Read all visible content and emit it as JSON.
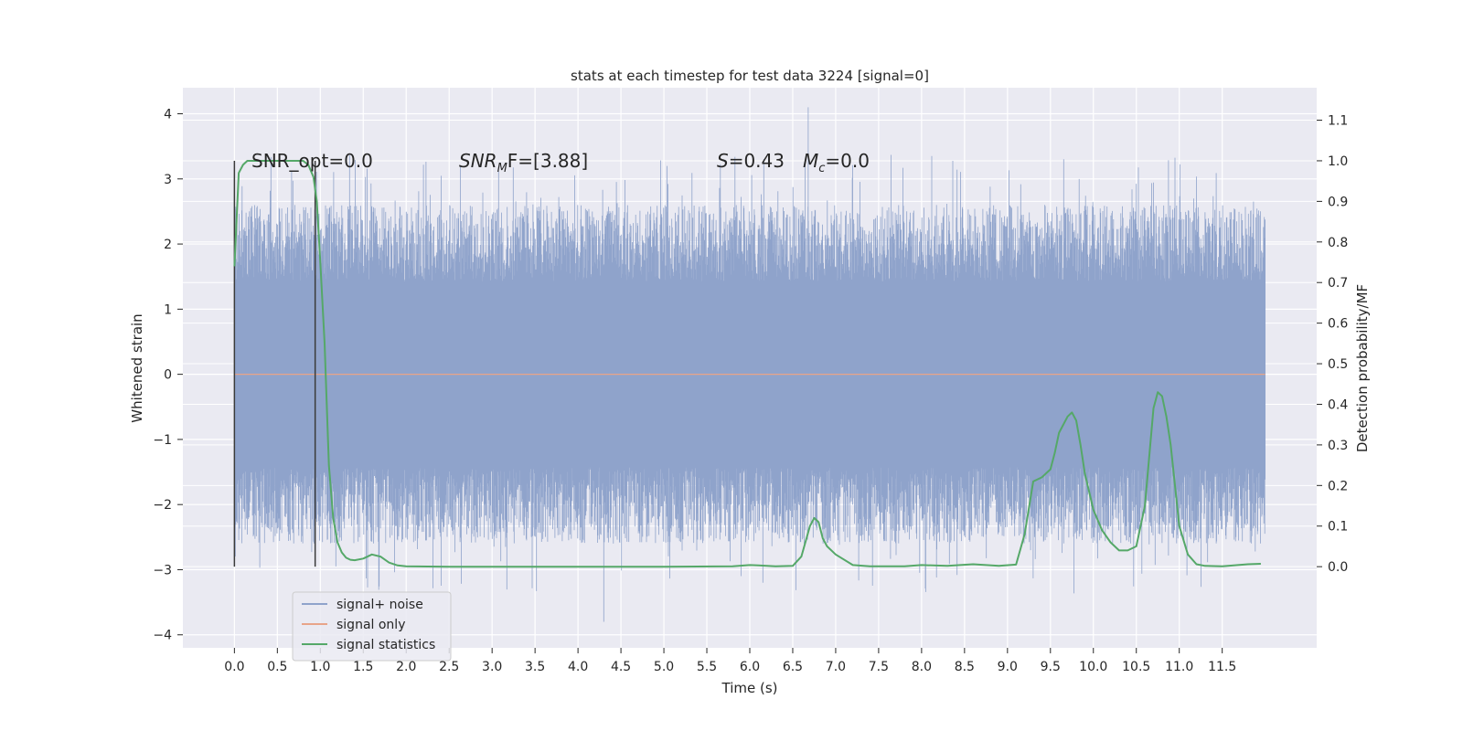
{
  "chart_data": {
    "type": "line",
    "title": "stats at each timestep for test data 3224 [signal=0]",
    "xlabel": "Time (s)",
    "ylabel": "Whitened strain",
    "ylabel_right": "Detection probability/MF",
    "xlim": [
      -0.6,
      12.6
    ],
    "ylim": [
      -4.2,
      4.4
    ],
    "ylim_right": [
      -0.2,
      1.18
    ],
    "x_ticks": [
      "0.0",
      "0.5",
      "1.0",
      "1.5",
      "2.0",
      "2.5",
      "3.0",
      "3.5",
      "4.0",
      "4.5",
      "5.0",
      "5.5",
      "6.0",
      "6.5",
      "7.0",
      "7.5",
      "8.0",
      "8.5",
      "9.0",
      "9.5",
      "10.0",
      "10.5",
      "11.0",
      "11.5"
    ],
    "y_ticks": [
      "4",
      "3",
      "2",
      "1",
      "0",
      "−1",
      "−2",
      "−3",
      "−4"
    ],
    "y_ticks_right": [
      "1.1",
      "1.0",
      "0.9",
      "0.8",
      "0.7",
      "0.6",
      "0.5",
      "0.4",
      "0.3",
      "0.2",
      "0.1",
      "0.0"
    ],
    "grid": true,
    "legend_position": "lower-left",
    "annotations": {
      "snr_opt": "SNR_opt=0.0",
      "snr_mf_var": "SNR",
      "snr_mf_sub": "M",
      "snr_mf_rest": "F=[3.88]",
      "s_var": "S",
      "s_value": "=0.43",
      "mc_var": "M",
      "mc_sub": "c",
      "mc_value": "=0.0"
    },
    "vertical_markers_x": [
      0.0,
      0.94
    ],
    "colors": {
      "background": "#eaeaf2",
      "grid": "#ffffff",
      "noise": "#8fa3cb",
      "signal": "#e8a489",
      "stats": "#55a868",
      "marker": "#3a3a3a"
    },
    "series": [
      {
        "name": "signal+ noise",
        "axis": "left",
        "style": "dense-noise",
        "x_range": [
          0.0,
          12.0
        ],
        "core_band": [
          -1.4,
          1.4
        ],
        "typical_peak": [
          -2.6,
          2.6
        ],
        "max": 4.1,
        "min": -3.8
      },
      {
        "name": "signal only",
        "axis": "left",
        "x": [
          0.0,
          12.0
        ],
        "values": [
          0.0,
          0.0
        ]
      },
      {
        "name": "signal statistics",
        "axis": "right",
        "x": [
          0.0,
          0.05,
          0.1,
          0.15,
          0.2,
          0.3,
          0.4,
          0.5,
          0.6,
          0.7,
          0.8,
          0.86,
          0.92,
          0.96,
          1.0,
          1.05,
          1.1,
          1.15,
          1.2,
          1.25,
          1.3,
          1.35,
          1.4,
          1.5,
          1.6,
          1.7,
          1.8,
          1.9,
          2.0,
          2.5,
          3.0,
          4.0,
          5.0,
          5.8,
          6.0,
          6.1,
          6.3,
          6.5,
          6.6,
          6.7,
          6.75,
          6.8,
          6.85,
          6.9,
          7.0,
          7.2,
          7.4,
          7.8,
          8.0,
          8.3,
          8.6,
          8.9,
          9.1,
          9.2,
          9.3,
          9.4,
          9.5,
          9.55,
          9.6,
          9.7,
          9.75,
          9.8,
          9.85,
          9.9,
          10.0,
          10.1,
          10.2,
          10.3,
          10.4,
          10.5,
          10.6,
          10.7,
          10.75,
          10.8,
          10.85,
          10.9,
          11.0,
          11.1,
          11.2,
          11.3,
          11.5,
          11.8,
          11.95
        ],
        "values": [
          0.74,
          0.97,
          0.99,
          1.0,
          1.0,
          1.0,
          1.0,
          1.0,
          1.0,
          1.0,
          1.0,
          0.99,
          0.96,
          0.9,
          0.75,
          0.55,
          0.25,
          0.12,
          0.06,
          0.035,
          0.022,
          0.017,
          0.016,
          0.02,
          0.03,
          0.025,
          0.01,
          0.003,
          0.001,
          0.0,
          0.0,
          0.0,
          0.0,
          0.001,
          0.004,
          0.003,
          0.001,
          0.002,
          0.025,
          0.1,
          0.12,
          0.11,
          0.07,
          0.05,
          0.03,
          0.004,
          0.001,
          0.001,
          0.004,
          0.002,
          0.006,
          0.002,
          0.005,
          0.08,
          0.21,
          0.22,
          0.24,
          0.28,
          0.33,
          0.37,
          0.38,
          0.36,
          0.3,
          0.23,
          0.14,
          0.09,
          0.06,
          0.04,
          0.04,
          0.05,
          0.15,
          0.39,
          0.43,
          0.42,
          0.37,
          0.3,
          0.1,
          0.03,
          0.006,
          0.002,
          0.001,
          0.006,
          0.007
        ]
      }
    ]
  }
}
